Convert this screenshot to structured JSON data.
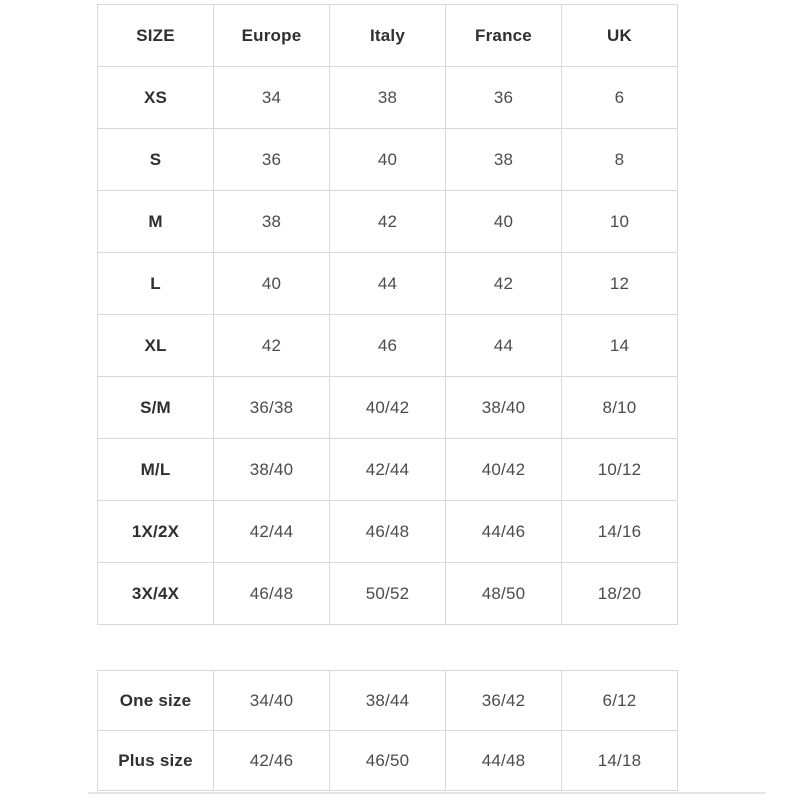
{
  "colors": {
    "background": "#ffffff",
    "border": "#d8d8d8",
    "header_text": "#2f2f2f",
    "cell_text": "#4c4c4c",
    "divider": "#e3e3e3"
  },
  "size_table": {
    "columns": [
      "SIZE",
      "Europe",
      "Italy",
      "France",
      "UK"
    ],
    "rows": [
      {
        "size": "XS",
        "values": [
          "34",
          "38",
          "36",
          "6"
        ]
      },
      {
        "size": "S",
        "values": [
          "36",
          "40",
          "38",
          "8"
        ]
      },
      {
        "size": "M",
        "values": [
          "38",
          "42",
          "40",
          "10"
        ]
      },
      {
        "size": "L",
        "values": [
          "40",
          "44",
          "42",
          "12"
        ]
      },
      {
        "size": "XL",
        "values": [
          "42",
          "46",
          "44",
          "14"
        ]
      },
      {
        "size": "S/M",
        "values": [
          "36/38",
          "40/42",
          "38/40",
          "8/10"
        ]
      },
      {
        "size": "M/L",
        "values": [
          "38/40",
          "42/44",
          "40/42",
          "10/12"
        ]
      },
      {
        "size": "1X/2X",
        "values": [
          "42/44",
          "46/48",
          "44/46",
          "14/16"
        ]
      },
      {
        "size": "3X/4X",
        "values": [
          "46/48",
          "50/52",
          "48/50",
          "18/20"
        ]
      }
    ]
  },
  "special_table": {
    "rows": [
      {
        "size": "One size",
        "values": [
          "34/40",
          "38/44",
          "36/42",
          "6/12"
        ]
      },
      {
        "size": "Plus size",
        "values": [
          "42/46",
          "46/50",
          "44/48",
          "14/18"
        ]
      }
    ]
  }
}
